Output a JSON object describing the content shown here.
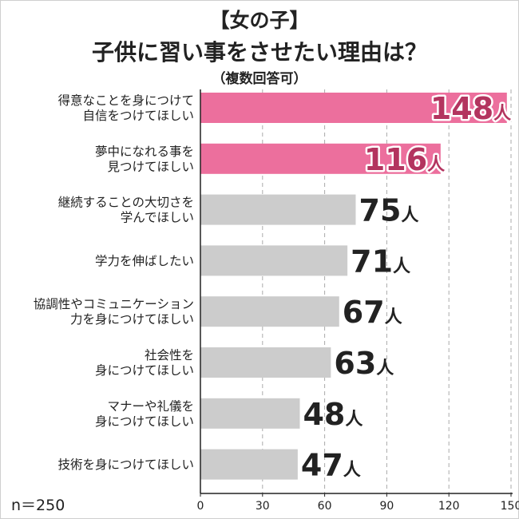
{
  "title_line1": "【女の子】",
  "title_line2": "子供に習い事をさせたい理由は？",
  "subtitle": "（複数回答可）",
  "sample_size": "n＝250",
  "colors": {
    "highlight": "#ec6f9d",
    "bar": "#cccccc",
    "highlight_text": "#b3345f",
    "text": "#222222",
    "grid": "#aaaaaa"
  },
  "chart_data": {
    "type": "bar",
    "orientation": "horizontal",
    "categories": [
      [
        "得意なことを身につけて",
        "自信をつけてほしい"
      ],
      [
        "夢中になれる事を",
        "見つけてほしい"
      ],
      [
        "継続することの大切さを",
        "学んでほしい"
      ],
      [
        "学力を伸ばしたい"
      ],
      [
        "協調性やコミュニケーション",
        "力を身につけてほしい"
      ],
      [
        "社会性を",
        "身につけてほしい"
      ],
      [
        "マナーや礼儀を",
        "身につけてほしい"
      ],
      [
        "技術を身につけてほしい"
      ]
    ],
    "values": [
      148,
      116,
      75,
      71,
      67,
      63,
      48,
      47
    ],
    "value_labels": [
      "148",
      "116",
      "75",
      "71",
      "67",
      "63",
      "48",
      "47"
    ],
    "unit": "人",
    "highlighted": [
      0,
      1
    ],
    "xlim": [
      0,
      150
    ],
    "xticks": [
      0,
      30,
      60,
      90,
      120,
      150
    ],
    "grid": true
  }
}
